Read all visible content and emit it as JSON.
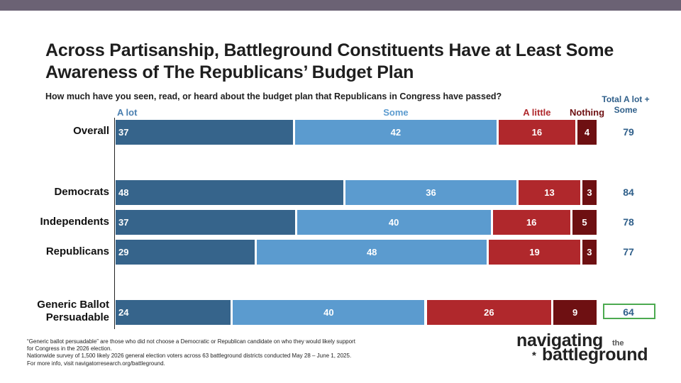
{
  "title": "Across Partisanship, Battleground Constituents Have at Least Some Awareness of The Republicans’ Budget Plan",
  "question": "How much have you seen, read, or heard about the budget plan that Republicans in Congress have passed?",
  "total_header": "Total A lot + Some",
  "colors": {
    "a_lot": "#36648b",
    "some": "#5b9bcf",
    "a_little": "#b0282c",
    "nothing": "#6e1012",
    "total_text": "#2f5f8a",
    "highlight_box": "#4caa50"
  },
  "chart_data": {
    "type": "bar",
    "orientation": "horizontal",
    "stacked": true,
    "title": "Across Partisanship, Battleground Constituents Have at Least Some Awareness of The Republicans’ Budget Plan",
    "subtitle": "How much have you seen, read, or heard about the budget plan that Republicans in Congress have passed?",
    "categories": [
      "Overall",
      "Democrats",
      "Independents",
      "Republicans",
      "Generic Ballot Persuadable"
    ],
    "series": [
      {
        "name": "A lot",
        "values": [
          37,
          48,
          37,
          29,
          24
        ]
      },
      {
        "name": "Some",
        "values": [
          42,
          36,
          40,
          48,
          40
        ]
      },
      {
        "name": "A little",
        "values": [
          16,
          13,
          16,
          19,
          26
        ]
      },
      {
        "name": "Nothing",
        "values": [
          4,
          3,
          5,
          3,
          9
        ]
      }
    ],
    "totals": {
      "label": "Total A lot + Some",
      "values": [
        79,
        84,
        78,
        77,
        64
      ],
      "highlighted_index": 4
    },
    "xlim": [
      0,
      100
    ]
  },
  "footnote": [
    "“Generic ballot persuadable” are those who did not choose a Democratic or Republican candidate on who they would likely support",
    "for Congress in the 2026 election.",
    "Nationwide survey of 1,500 likely 2026 general election voters across 63 battleground districts conducted May 28 – June 1, 2025.",
    "For more info, visit navigatorresearch.org/battleground."
  ],
  "logo": {
    "line1": "navigating",
    "small": "the",
    "star": "*",
    "line2": "battleground"
  }
}
